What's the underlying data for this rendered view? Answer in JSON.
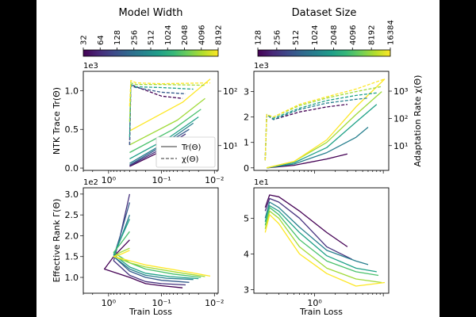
{
  "chart_data": [
    {
      "type": "line",
      "panel": "top-left",
      "ylabel_left": "NTK Trace Tr(Θ)",
      "ylabel_right": "",
      "offset_text": "1e3",
      "xscale": "log",
      "xlim": [
        3.0,
        0.0085
      ],
      "x_ticks": [
        "10⁰",
        "10⁻¹",
        "10⁻²"
      ],
      "ylim": [
        -0.03,
        1.25
      ],
      "y_ticks": [
        "0.0",
        "0.5",
        "1.0"
      ],
      "right_ticks": [
        "10¹",
        "10²"
      ],
      "legend": [
        {
          "label": "Tr(Θ)",
          "style": "solid"
        },
        {
          "label": "χ(Θ)",
          "style": "dashed"
        }
      ],
      "legend_position": "lower-right",
      "series": [
        {
          "name": "32",
          "color": "#440154",
          "x": [
            0.4,
            0.1,
            0.04
          ],
          "y": [
            0.02,
            0.22,
            0.38
          ],
          "style": "solid"
        },
        {
          "name": "64",
          "color": "#46327e",
          "x": [
            0.4,
            0.1,
            0.035
          ],
          "y": [
            0.03,
            0.25,
            0.44
          ],
          "style": "solid"
        },
        {
          "name": "128",
          "color": "#365c8d",
          "x": [
            0.4,
            0.1,
            0.03
          ],
          "y": [
            0.04,
            0.28,
            0.5
          ],
          "style": "solid"
        },
        {
          "name": "256",
          "color": "#277f8e",
          "x": [
            0.4,
            0.08,
            0.025
          ],
          "y": [
            0.06,
            0.34,
            0.58
          ],
          "style": "solid"
        },
        {
          "name": "512",
          "color": "#1fa187",
          "x": [
            0.4,
            0.07,
            0.02
          ],
          "y": [
            0.12,
            0.4,
            0.66
          ],
          "style": "solid"
        },
        {
          "name": "1024",
          "color": "#4ac16d",
          "x": [
            0.4,
            0.06,
            0.018
          ],
          "y": [
            0.2,
            0.5,
            0.76
          ],
          "style": "solid"
        },
        {
          "name": "2048",
          "color": "#a0da39",
          "x": [
            0.4,
            0.05,
            0.015
          ],
          "y": [
            0.3,
            0.62,
            0.9
          ],
          "style": "solid"
        },
        {
          "name": "4096",
          "color": "#fde725",
          "x": [
            0.4,
            0.04,
            0.012
          ],
          "y": [
            0.48,
            0.85,
            1.15
          ],
          "style": "solid"
        },
        {
          "name": "32 χ",
          "color": "#440154",
          "x": [
            0.4,
            0.38,
            0.3,
            0.1,
            0.04
          ],
          "y": [
            0.3,
            1.08,
            1.05,
            0.93,
            0.9
          ],
          "style": "dashed"
        },
        {
          "name": "128 χ",
          "color": "#365c8d",
          "x": [
            0.4,
            0.38,
            0.3,
            0.1,
            0.035
          ],
          "y": [
            0.3,
            1.06,
            1.04,
            0.98,
            0.96
          ],
          "style": "dashed"
        },
        {
          "name": "512 χ",
          "color": "#1fa187",
          "x": [
            0.4,
            0.38,
            0.3,
            0.1,
            0.025
          ],
          "y": [
            0.4,
            1.08,
            1.05,
            1.04,
            1.02
          ],
          "style": "dashed"
        },
        {
          "name": "2048 χ",
          "color": "#a0da39",
          "x": [
            0.4,
            0.38,
            0.3,
            0.1,
            0.015
          ],
          "y": [
            0.6,
            1.1,
            1.08,
            1.08,
            1.07
          ],
          "style": "dashed"
        },
        {
          "name": "4096 χ",
          "color": "#fde725",
          "x": [
            0.4,
            0.38,
            0.3,
            0.1,
            0.012
          ],
          "y": [
            0.8,
            1.13,
            1.1,
            1.09,
            1.1
          ],
          "style": "dashed"
        }
      ]
    },
    {
      "type": "line",
      "panel": "top-right",
      "ylabel_left": "",
      "ylabel_right": "Adaptation Rate χ(Θ)",
      "offset_text": "1e3",
      "xscale": "log",
      "xlim": [
        0.13,
        12.0
      ],
      "x_ticks": [],
      "ylim": [
        -0.1,
        3.8
      ],
      "y_ticks": [
        "0",
        "1",
        "2",
        "3"
      ],
      "right_ticks": [
        "10¹",
        "10²",
        "10³"
      ],
      "series": [
        {
          "name": "128",
          "color": "#440154",
          "x": [
            0.2,
            0.5,
            1.5,
            3.0
          ],
          "y": [
            0.0,
            0.1,
            0.35,
            0.55
          ],
          "style": "solid"
        },
        {
          "name": "512",
          "color": "#277f8e",
          "x": [
            0.2,
            0.5,
            1.5,
            4.0,
            6.0
          ],
          "y": [
            0.0,
            0.15,
            0.6,
            1.2,
            1.6
          ],
          "style": "solid"
        },
        {
          "name": "2048",
          "color": "#1fa187",
          "x": [
            0.2,
            0.5,
            1.5,
            4.0,
            8.0
          ],
          "y": [
            0.0,
            0.2,
            0.8,
            1.8,
            2.5
          ],
          "style": "solid"
        },
        {
          "name": "8192",
          "color": "#a0da39",
          "x": [
            0.2,
            0.5,
            1.5,
            4.0,
            9.5
          ],
          "y": [
            0.0,
            0.25,
            1.0,
            2.1,
            3.0
          ],
          "style": "solid"
        },
        {
          "name": "16384",
          "color": "#fde725",
          "x": [
            0.2,
            0.5,
            1.5,
            4.0,
            10.5
          ],
          "y": [
            0.0,
            0.25,
            1.1,
            2.4,
            3.5
          ],
          "style": "solid"
        },
        {
          "name": "128 χ",
          "color": "#440154",
          "x": [
            0.19,
            0.2,
            0.25,
            0.6,
            1.5,
            3.0
          ],
          "y": [
            0.3,
            2.1,
            1.9,
            2.2,
            2.4,
            2.5
          ],
          "style": "dashed"
        },
        {
          "name": "512 χ",
          "color": "#277f8e",
          "x": [
            0.19,
            0.2,
            0.25,
            0.6,
            1.5,
            4.0,
            6.0
          ],
          "y": [
            0.3,
            2.1,
            1.9,
            2.3,
            2.55,
            2.7,
            2.75
          ],
          "style": "dashed"
        },
        {
          "name": "2048 χ",
          "color": "#1fa187",
          "x": [
            0.19,
            0.2,
            0.25,
            0.6,
            1.5,
            4.0,
            8.0
          ],
          "y": [
            0.3,
            2.1,
            1.95,
            2.35,
            2.65,
            2.85,
            2.95
          ],
          "style": "dashed"
        },
        {
          "name": "8192 χ",
          "color": "#a0da39",
          "x": [
            0.19,
            0.2,
            0.25,
            0.6,
            1.5,
            4.0,
            9.5
          ],
          "y": [
            0.3,
            2.1,
            2.0,
            2.45,
            2.75,
            3.0,
            3.2
          ],
          "style": "dashed"
        },
        {
          "name": "16384 χ",
          "color": "#fde725",
          "x": [
            0.19,
            0.2,
            0.25,
            0.6,
            1.5,
            4.0,
            10.5
          ],
          "y": [
            0.3,
            2.1,
            2.0,
            2.5,
            2.8,
            3.1,
            3.5
          ],
          "style": "dashed"
        }
      ]
    },
    {
      "type": "line",
      "panel": "bottom-left",
      "ylabel_left": "Effective Rank Γ(Θ)",
      "offset_text": "1e2",
      "xlabel": "Train Loss",
      "xscale": "log",
      "xlim": [
        3.0,
        0.0085
      ],
      "x_ticks": [
        "10⁰",
        "10⁻¹",
        "10⁻²"
      ],
      "ylim": [
        0.62,
        3.15
      ],
      "y_ticks": [
        "1.0",
        "1.5",
        "2.0",
        "2.5",
        "3.0"
      ],
      "series": [
        {
          "name": "32",
          "color": "#440154",
          "x": [
            0.4,
            0.8,
            1.2,
            0.4,
            0.2,
            0.1,
            0.04
          ],
          "y": [
            1.9,
            1.5,
            1.2,
            1.0,
            0.85,
            0.8,
            0.75
          ],
          "style": "solid"
        },
        {
          "name": "64",
          "color": "#46327e",
          "x": [
            0.4,
            0.6,
            0.8,
            0.4,
            0.2,
            0.1,
            0.035
          ],
          "y": [
            3.0,
            2.0,
            1.4,
            1.05,
            0.9,
            0.85,
            0.82
          ],
          "style": "solid"
        },
        {
          "name": "128",
          "color": "#365c8d",
          "x": [
            0.4,
            0.6,
            0.8,
            0.4,
            0.2,
            0.1,
            0.03
          ],
          "y": [
            2.8,
            2.0,
            1.5,
            1.15,
            1.0,
            0.93,
            0.88
          ],
          "style": "solid"
        },
        {
          "name": "256",
          "color": "#277f8e",
          "x": [
            0.4,
            0.6,
            0.8,
            0.4,
            0.2,
            0.08,
            0.025
          ],
          "y": [
            2.5,
            1.9,
            1.5,
            1.2,
            1.05,
            0.98,
            0.95
          ],
          "style": "solid"
        },
        {
          "name": "512",
          "color": "#1fa187",
          "x": [
            0.4,
            0.6,
            0.8,
            0.4,
            0.2,
            0.07,
            0.02
          ],
          "y": [
            2.4,
            1.9,
            1.55,
            1.25,
            1.1,
            1.02,
            0.97
          ],
          "style": "solid"
        },
        {
          "name": "1024",
          "color": "#4ac16d",
          "x": [
            0.4,
            0.6,
            0.8,
            0.4,
            0.2,
            0.06,
            0.018
          ],
          "y": [
            2.1,
            1.8,
            1.6,
            1.35,
            1.2,
            1.08,
            1.0
          ],
          "style": "solid"
        },
        {
          "name": "2048",
          "color": "#a0da39",
          "x": [
            0.4,
            0.6,
            0.8,
            0.4,
            0.2,
            0.05,
            0.015
          ],
          "y": [
            1.7,
            1.6,
            1.5,
            1.35,
            1.25,
            1.12,
            1.02
          ],
          "style": "solid"
        },
        {
          "name": "4096",
          "color": "#fde725",
          "x": [
            0.4,
            0.6,
            0.8,
            0.4,
            0.2,
            0.04,
            0.012
          ],
          "y": [
            1.65,
            1.55,
            1.5,
            1.4,
            1.3,
            1.15,
            1.03
          ],
          "style": "solid"
        }
      ]
    },
    {
      "type": "line",
      "panel": "bottom-right",
      "offset_text": "1e1",
      "xlabel": "Train Loss",
      "xscale": "log",
      "xlim": [
        0.13,
        12.0
      ],
      "x_ticks": [
        "10⁰"
      ],
      "ylim": [
        2.9,
        5.85
      ],
      "y_ticks": [
        "3",
        "4",
        "5"
      ],
      "series": [
        {
          "name": "128",
          "color": "#440154",
          "x": [
            0.19,
            0.22,
            0.3,
            0.6,
            1.5,
            3.0
          ],
          "y": [
            5.3,
            5.65,
            5.6,
            5.2,
            4.6,
            4.2
          ],
          "style": "solid"
        },
        {
          "name": "256",
          "color": "#46327e",
          "x": [
            0.19,
            0.22,
            0.3,
            0.6,
            1.5,
            3.5
          ],
          "y": [
            5.2,
            5.55,
            5.45,
            5.0,
            4.2,
            3.85
          ],
          "style": "solid"
        },
        {
          "name": "512",
          "color": "#277f8e",
          "x": [
            0.19,
            0.22,
            0.3,
            0.6,
            1.5,
            4.0,
            6.0
          ],
          "y": [
            5.0,
            5.45,
            5.3,
            4.75,
            4.1,
            3.8,
            3.7
          ],
          "style": "solid"
        },
        {
          "name": "2048",
          "color": "#1fa187",
          "x": [
            0.19,
            0.22,
            0.3,
            0.6,
            1.5,
            4.0,
            8.0
          ],
          "y": [
            4.9,
            5.35,
            5.2,
            4.6,
            3.95,
            3.6,
            3.5
          ],
          "style": "solid"
        },
        {
          "name": "4096",
          "color": "#4ac16d",
          "x": [
            0.19,
            0.22,
            0.3,
            0.6,
            1.5,
            4.0,
            8.5
          ],
          "y": [
            4.8,
            5.3,
            5.1,
            4.4,
            3.8,
            3.5,
            3.4
          ],
          "style": "solid"
        },
        {
          "name": "8192",
          "color": "#a0da39",
          "x": [
            0.19,
            0.22,
            0.3,
            0.6,
            1.5,
            4.0,
            9.5
          ],
          "y": [
            4.7,
            5.2,
            5.0,
            4.2,
            3.6,
            3.3,
            3.2
          ],
          "style": "solid"
        },
        {
          "name": "16384",
          "color": "#fde725",
          "x": [
            0.19,
            0.22,
            0.3,
            0.6,
            1.5,
            4.0,
            10.5
          ],
          "y": [
            4.6,
            5.1,
            4.85,
            4.0,
            3.45,
            3.1,
            3.2
          ],
          "style": "solid"
        }
      ]
    }
  ],
  "colorbars": [
    {
      "title": "Model Width",
      "ticks": [
        "32",
        "64",
        "128",
        "256",
        "512",
        "1024",
        "2048",
        "4096",
        "8192"
      ]
    },
    {
      "title": "Dataset Size",
      "ticks": [
        "128",
        "256",
        "512",
        "1024",
        "2048",
        "4096",
        "8192",
        "16384"
      ]
    }
  ],
  "viridis": [
    "#440154",
    "#482878",
    "#3e4989",
    "#31688e",
    "#26828e",
    "#1f9e89",
    "#35b779",
    "#6ece58",
    "#b5de2b",
    "#fde725"
  ]
}
